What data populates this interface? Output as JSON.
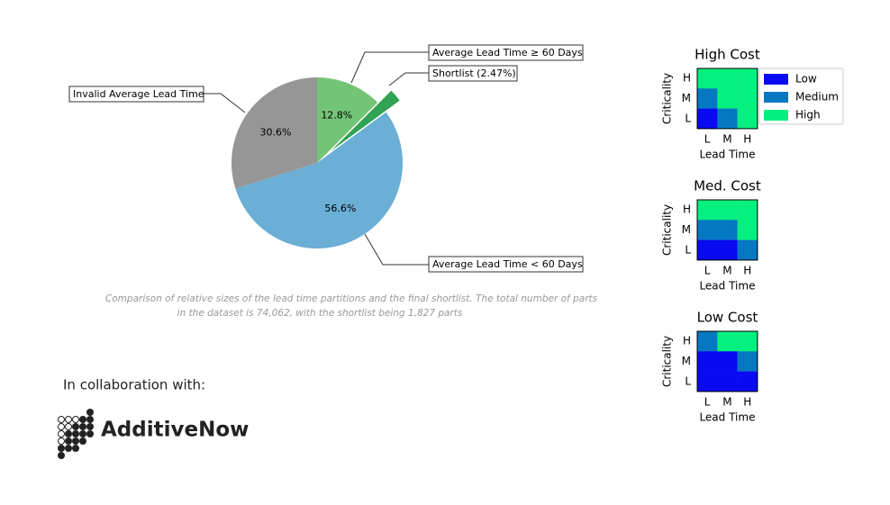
{
  "chart_data": [
    {
      "type": "pie",
      "categories": [
        "Average Lead Time ≥ 60 Days",
        "Shortlist (2.47%)",
        "Average Lead Time < 60 Days",
        "Invalid Average Lead Time"
      ],
      "values": [
        12.8,
        2.47,
        56.6,
        30.6
      ],
      "value_labels": [
        "12.8%",
        null,
        "56.6%",
        "30.6%"
      ],
      "colors": [
        "#74c476",
        "#31a354",
        "#6baed6",
        "#969696"
      ],
      "caption": [
        "Comparison of relative sizes of the lead time partitions and the final shortlist. The total number of parts",
        "in the dataset is 74,062, with the shortlist being 1,827 parts"
      ]
    },
    {
      "type": "heatmap",
      "title": "High Cost",
      "xlabel": "Lead Time",
      "ylabel": "Criticality",
      "x": [
        "L",
        "M",
        "H"
      ],
      "y": [
        "H",
        "M",
        "L"
      ],
      "levels": [
        "Low",
        "Medium",
        "High"
      ],
      "colors": [
        "#0a0af2",
        "#0578c2",
        "#05f07e"
      ],
      "z": [
        [
          2,
          2,
          2
        ],
        [
          1,
          2,
          2
        ],
        [
          0,
          1,
          2
        ]
      ]
    },
    {
      "type": "heatmap",
      "title": "Med. Cost",
      "xlabel": "Lead Time",
      "ylabel": "Criticality",
      "x": [
        "L",
        "M",
        "H"
      ],
      "y": [
        "H",
        "M",
        "L"
      ],
      "colors": [
        "#0a0af2",
        "#0578c2",
        "#05f07e"
      ],
      "z": [
        [
          2,
          2,
          2
        ],
        [
          1,
          1,
          2
        ],
        [
          0,
          0,
          1
        ]
      ]
    },
    {
      "type": "heatmap",
      "title": "Low Cost",
      "xlabel": "Lead Time",
      "ylabel": "Criticality",
      "x": [
        "L",
        "M",
        "H"
      ],
      "y": [
        "H",
        "M",
        "L"
      ],
      "colors": [
        "#0a0af2",
        "#0578c2",
        "#05f07e"
      ],
      "z": [
        [
          1,
          2,
          2
        ],
        [
          0,
          0,
          1
        ],
        [
          0,
          0,
          0
        ]
      ]
    }
  ],
  "collaboration": "In collaboration with:",
  "logo": "AdditiveNow"
}
